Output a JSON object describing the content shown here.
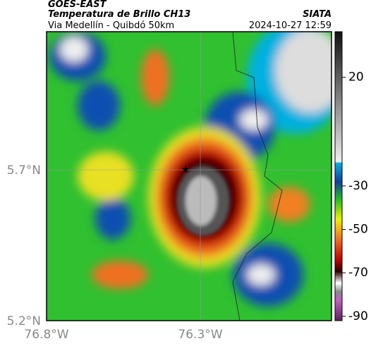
{
  "header": {
    "source": "GOES-EAST",
    "title": "Temperatura de Brillo CH13",
    "agency": "SIATA",
    "subtitle": "Via Medellín - Quibdó 50km",
    "datetime": "2024-10-27 12:59"
  },
  "map": {
    "lat_labels": [
      "5.7°N",
      "5.2°N"
    ],
    "lon_labels": [
      "76.8°W",
      "76.3°W"
    ]
  },
  "colorbar": {
    "clim": [
      -92,
      41
    ],
    "ticks": [
      20,
      -30,
      -50,
      -70,
      -90
    ]
  }
}
